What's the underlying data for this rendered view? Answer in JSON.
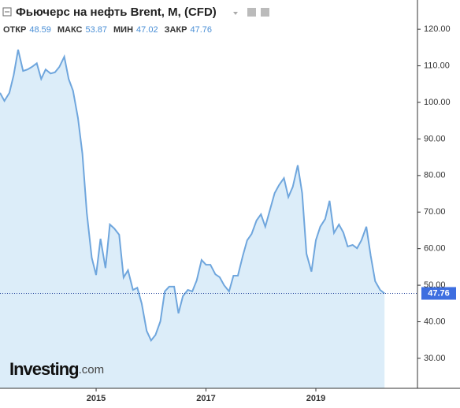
{
  "chart_data": {
    "type": "area",
    "title": "Фьючерс на нефть Brent, M, (CFD)",
    "stats": [
      {
        "label": "ОТКР",
        "value": 48.59
      },
      {
        "label": "МАКС",
        "value": 53.87
      },
      {
        "label": "МИН",
        "value": 47.02
      },
      {
        "label": "ЗАКР",
        "value": 47.76
      }
    ],
    "watermark": "Investing",
    "watermark_suffix": ".com",
    "x": [
      2013.25,
      2013.33,
      2013.42,
      2013.5,
      2013.58,
      2013.67,
      2013.75,
      2013.83,
      2013.92,
      2014.0,
      2014.08,
      2014.17,
      2014.25,
      2014.33,
      2014.42,
      2014.5,
      2014.58,
      2014.67,
      2014.75,
      2014.83,
      2014.92,
      2015.0,
      2015.08,
      2015.17,
      2015.25,
      2015.33,
      2015.42,
      2015.5,
      2015.58,
      2015.67,
      2015.75,
      2015.83,
      2015.92,
      2016.0,
      2016.08,
      2016.17,
      2016.25,
      2016.33,
      2016.42,
      2016.5,
      2016.58,
      2016.67,
      2016.75,
      2016.83,
      2016.92,
      2017.0,
      2017.08,
      2017.17,
      2017.25,
      2017.33,
      2017.42,
      2017.5,
      2017.58,
      2017.67,
      2017.75,
      2017.83,
      2017.92,
      2018.0,
      2018.08,
      2018.17,
      2018.25,
      2018.33,
      2018.42,
      2018.5,
      2018.58,
      2018.67,
      2018.75,
      2018.83,
      2018.92,
      2019.0,
      2019.08,
      2019.17,
      2019.25,
      2019.33,
      2019.42,
      2019.5,
      2019.58,
      2019.67,
      2019.75,
      2019.83,
      2019.92,
      2020.0,
      2020.08,
      2020.17,
      2020.25
    ],
    "series": [
      {
        "name": "Brent",
        "color": "#6fa6dd",
        "fill": "#dcedf9",
        "values": [
          102.6,
          100.4,
          102.6,
          107.5,
          114.4,
          108.6,
          109.0,
          109.7,
          110.7,
          106.4,
          109.0,
          107.9,
          108.2,
          109.7,
          112.5,
          106.4,
          103.2,
          95.7,
          86.0,
          69.8,
          57.5,
          52.8,
          62.7,
          54.7,
          66.6,
          65.5,
          63.8,
          52.1,
          54.1,
          48.7,
          49.3,
          45.0,
          37.5,
          34.9,
          36.4,
          40.1,
          48.3,
          49.6,
          49.6,
          42.3,
          47.0,
          48.7,
          48.3,
          51.3,
          56.9,
          55.6,
          55.6,
          53.0,
          52.2,
          50.0,
          48.3,
          52.6,
          52.6,
          58.0,
          62.3,
          64.0,
          67.7,
          69.4,
          66.0,
          70.9,
          75.2,
          77.4,
          79.3,
          74.1,
          76.9,
          82.8,
          75.2,
          58.6,
          53.7,
          62.3,
          66.0,
          68.1,
          73.1,
          64.3,
          66.6,
          64.4,
          60.6,
          61.0,
          60.1,
          62.3,
          66.0,
          58.0,
          51.1,
          48.7,
          47.76
        ]
      }
    ],
    "xlim": [
      2013.25,
      2020.85
    ],
    "xticks": [
      2015,
      2017,
      2019
    ],
    "ylim": [
      21.8,
      128.0
    ],
    "yticks": [
      {
        "value": 30,
        "label": "30.00"
      },
      {
        "value": 40,
        "label": "40.00"
      },
      {
        "value": 50,
        "label": "50.00"
      },
      {
        "value": 60,
        "label": "60.00"
      },
      {
        "value": 70,
        "label": "70.00"
      },
      {
        "value": 80,
        "label": "80.00"
      },
      {
        "value": 90,
        "label": "90.00"
      },
      {
        "value": 100,
        "label": "100.00"
      },
      {
        "value": 110,
        "label": "110.00"
      },
      {
        "value": 120,
        "label": "120.00"
      }
    ],
    "grid": false
  }
}
